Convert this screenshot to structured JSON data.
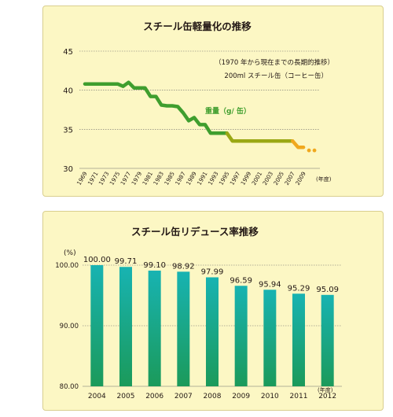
{
  "colors": {
    "panel_bg": "#fcf7c4",
    "panel_border": "#d9cf8f",
    "line_green": "#3f9e2e",
    "line_olive": "#9aa814",
    "line_orange": "#f0a81e",
    "label_green": "#3f9e2e",
    "bar_top": "#18b3b2",
    "bar_bottom": "#1b9a5a",
    "grid": "#6b6b6b",
    "text": "#231815"
  },
  "chart_data": [
    {
      "type": "line",
      "title": "スチール缶軽量化の推移",
      "annotation_lines": [
        "（1970 年から現在までの長期的推移）",
        "200ml スチール缶（コーヒー缶）"
      ],
      "series_label": "重量（g/ 缶）",
      "x_unit": "(年度)",
      "ylim": [
        30,
        45
      ],
      "yticks": [
        "45",
        "40",
        "35",
        "30"
      ],
      "ytick_values": [
        45,
        40,
        35,
        30
      ],
      "xticks": [
        "1969",
        "1971",
        "1973",
        "1975",
        "1977",
        "1979",
        "1981",
        "1983",
        "1985",
        "1987",
        "1989",
        "1991",
        "1993",
        "1995",
        "1997",
        "1999",
        "2001",
        "2003",
        "2005",
        "2007",
        "2009"
      ],
      "x_range": [
        1968,
        2012
      ],
      "grid": true,
      "x": [
        1969,
        1970,
        1971,
        1972,
        1973,
        1974,
        1975,
        1976,
        1977,
        1978,
        1979,
        1980,
        1981,
        1982,
        1983,
        1984,
        1985,
        1986,
        1987,
        1988,
        1989,
        1990,
        1991,
        1992,
        1993,
        1994,
        1995,
        1996,
        1997,
        1998,
        1999,
        2000,
        2001,
        2002,
        2003,
        2004,
        2005,
        2006,
        2007,
        2008,
        2009,
        2010,
        2011
      ],
      "values": [
        40.8,
        40.8,
        40.8,
        40.8,
        40.8,
        40.8,
        40.8,
        40.5,
        41,
        40.3,
        40.3,
        40.3,
        39.2,
        39.2,
        38.1,
        38,
        38,
        37.9,
        37.1,
        36.1,
        36.5,
        35.6,
        35.6,
        34.5,
        34.5,
        34.5,
        34.5,
        33.5,
        33.5,
        33.5,
        33.5,
        33.5,
        33.5,
        33.5,
        33.5,
        33.5,
        33.5,
        33.5,
        33.5,
        32.7,
        32.7,
        32.3,
        32.3
      ]
    },
    {
      "type": "bar",
      "title": "スチール缶リデュース率推移",
      "y_unit": "(%)",
      "x_unit": "(年度)",
      "ylim": [
        80,
        100
      ],
      "yticks": [
        "100.00",
        "90.00",
        "80.00"
      ],
      "ytick_values": [
        100,
        90,
        80
      ],
      "grid": true,
      "categories": [
        "2004",
        "2005",
        "2006",
        "2007",
        "2008",
        "2009",
        "2010",
        "2011",
        "2012"
      ],
      "values": [
        100.0,
        99.71,
        99.1,
        98.92,
        97.99,
        96.59,
        95.94,
        95.29,
        95.09
      ],
      "value_labels": [
        "100.00",
        "99.71",
        "99.10",
        "98.92",
        "97.99",
        "96.59",
        "95.94",
        "95.29",
        "95.09"
      ]
    }
  ]
}
